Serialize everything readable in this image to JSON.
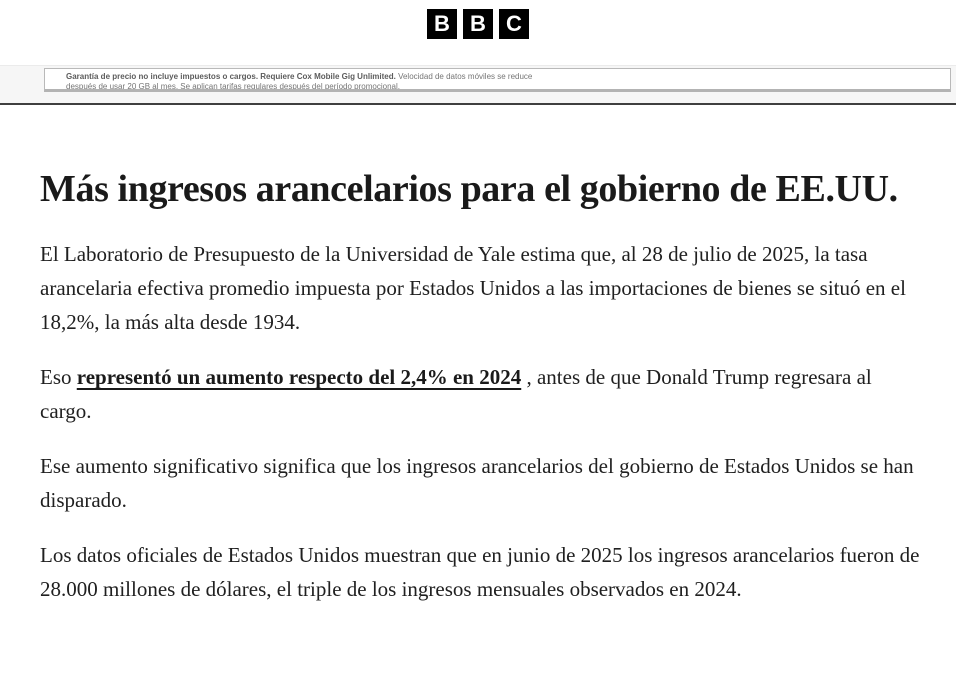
{
  "header": {
    "logo_letters": [
      "B",
      "B",
      "C"
    ]
  },
  "ad": {
    "line1_bold": "Garantía de precio no incluye impuestos o cargos. Requiere Cox Mobile Gig Unlimited.",
    "line1_regular": " Velocidad de datos móviles se reduce",
    "line2": "después de usar 20 GB al mes. Se aplican tarifas regulares después del período promocional."
  },
  "article": {
    "headline": "Más ingresos arancelarios para el gobierno de EE.UU.",
    "p1": "El Laboratorio de Presupuesto de la Universidad de Yale estima que, al 28 de julio de 2025, la tasa arancelaria efectiva promedio impuesta por Estados Unidos a las importaciones de bienes se situó en el 18,2%, la más alta desde 1934.",
    "p2_prefix": "Eso ",
    "p2_link": "representó un aumento respecto del 2,4% en 2024",
    "p2_suffix": " , antes de que Donald Trump regresara al cargo.",
    "p3": "Ese aumento significativo significa que los ingresos arancelarios del gobierno de Estados Unidos se han disparado.",
    "p4": "Los datos oficiales de Estados Unidos muestran que en junio de 2025 los ingresos arancelarios fueron de 28.000 millones de dólares, el triple de los ingresos mensuales observados en 2024."
  },
  "colors": {
    "logo_bg": "#000000",
    "strip_bg": "#f6f6f6",
    "divider": "#3f3f3f",
    "body_text": "#202020",
    "fineprint_text": "#767676"
  }
}
